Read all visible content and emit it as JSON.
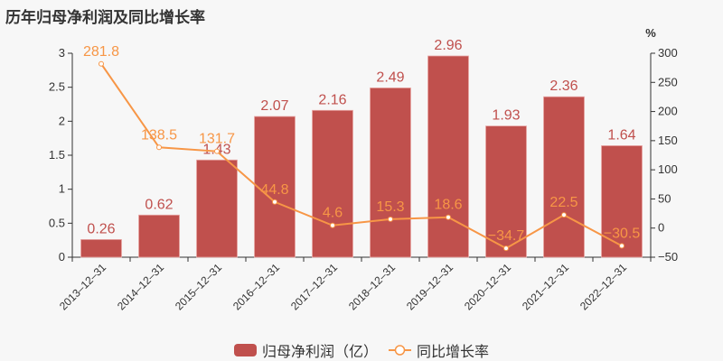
{
  "title": "历年归母净利润及同比增长率",
  "colors": {
    "bar": "#c0504d",
    "line": "#f79646",
    "bar_label": "#c0504d",
    "line_label": "#f79646",
    "axis": "#333333",
    "text": "#333333"
  },
  "chart_data": {
    "type": "bar+line",
    "title": "历年归母净利润及同比增长率",
    "categories": [
      "2013-12-31",
      "2014-12-31",
      "2015-12-31",
      "2016-12-31",
      "2017-12-31",
      "2018-12-31",
      "2019-12-31",
      "2020-12-31",
      "2021-12-31",
      "2022-12-31"
    ],
    "series": [
      {
        "name": "归母净利润（亿）",
        "type": "bar",
        "axis": "left",
        "values": [
          0.26,
          0.62,
          1.43,
          2.07,
          2.16,
          2.49,
          2.96,
          1.93,
          2.36,
          1.64
        ]
      },
      {
        "name": "同比增长率",
        "type": "line",
        "axis": "right",
        "values": [
          281.8,
          138.5,
          131.7,
          44.8,
          4.6,
          15.3,
          18.6,
          -34.7,
          22.5,
          -30.5
        ]
      }
    ],
    "left_axis": {
      "ticks": [
        "0",
        "0.5",
        "1",
        "1.5",
        "2",
        "2.5",
        "3"
      ],
      "ylim": [
        0,
        3
      ]
    },
    "right_axis": {
      "label": "%",
      "ticks": [
        "-50",
        "0",
        "50",
        "100",
        "150",
        "200",
        "250",
        "300"
      ],
      "ylim": [
        -50,
        300
      ]
    },
    "grid": false,
    "legend_position": "bottom"
  },
  "legend": {
    "bar_label": "归母净利润（亿）",
    "line_label": "同比增长率"
  }
}
